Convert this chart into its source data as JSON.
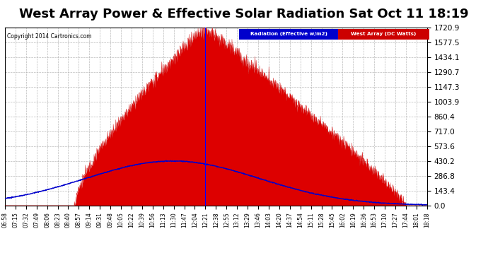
{
  "title": "West Array Power & Effective Solar Radiation Sat Oct 11 18:19",
  "copyright": "Copyright 2014 Cartronics.com",
  "legend_radiation": "Radiation (Effective w/m2)",
  "legend_west": "West Array (DC Watts)",
  "legend_radiation_color": "#0000ff",
  "legend_west_bg": "#cc0000",
  "y_ticks": [
    0.0,
    143.4,
    286.8,
    430.2,
    573.6,
    717.0,
    860.4,
    1003.9,
    1147.3,
    1290.7,
    1434.1,
    1577.5,
    1720.9
  ],
  "ylim": [
    0,
    1720.9
  ],
  "background_color": "#ffffff",
  "grid_color": "#aaaaaa",
  "title_fontsize": 13,
  "tick_interval_min": 17,
  "start_hhmm": "06:58",
  "end_hhmm": "18:18"
}
